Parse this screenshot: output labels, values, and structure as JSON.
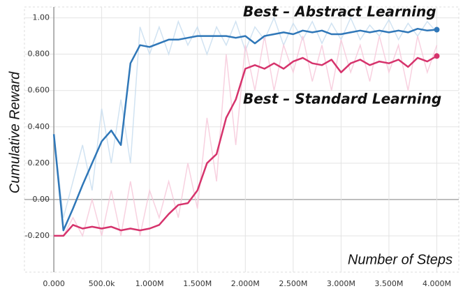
{
  "chart_data": {
    "type": "line",
    "y_label": "Cumulative Reward",
    "x_label": "Number of Steps",
    "xlim": [
      -307000,
      4230000
    ],
    "ylim": [
      -0.4,
      1.06
    ],
    "grid": true,
    "xticks": [
      {
        "value": 0,
        "label": "0.000"
      },
      {
        "value": 500000,
        "label": "500.0k"
      },
      {
        "value": 1000000,
        "label": "1.000M"
      },
      {
        "value": 1500000,
        "label": "1.500M"
      },
      {
        "value": 2000000,
        "label": "2.000M"
      },
      {
        "value": 2500000,
        "label": "2.500M"
      },
      {
        "value": 3000000,
        "label": "3.000M"
      },
      {
        "value": 3500000,
        "label": "3.500M"
      },
      {
        "value": 4000000,
        "label": "4.000M"
      }
    ],
    "yticks": [
      {
        "value": -0.2,
        "label": "-0.200"
      },
      {
        "value": 0,
        "label": "0.00"
      },
      {
        "value": 0.2,
        "label": "0.200"
      },
      {
        "value": 0.4,
        "label": "0.400"
      },
      {
        "value": 0.6,
        "label": "0.600"
      },
      {
        "value": 0.8,
        "label": "0.800"
      },
      {
        "value": 1,
        "label": "1.00"
      }
    ],
    "x": [
      0,
      100000,
      200000,
      300000,
      400000,
      500000,
      600000,
      700000,
      800000,
      900000,
      1000000,
      1100000,
      1200000,
      1300000,
      1400000,
      1500000,
      1600000,
      1700000,
      1800000,
      1900000,
      2000000,
      2100000,
      2200000,
      2300000,
      2400000,
      2500000,
      2600000,
      2700000,
      2800000,
      2900000,
      3000000,
      3100000,
      3200000,
      3300000,
      3400000,
      3500000,
      3600000,
      3700000,
      3800000,
      3900000,
      4000000
    ],
    "series": [
      {
        "name": "Best – Abstract Learning",
        "color": "#2f77b8",
        "raw_color": "#c6dcef",
        "values": [
          0.36,
          -0.17,
          -0.05,
          0.08,
          0.2,
          0.32,
          0.38,
          0.3,
          0.75,
          0.85,
          0.84,
          0.86,
          0.88,
          0.88,
          0.89,
          0.9,
          0.9,
          0.9,
          0.9,
          0.89,
          0.9,
          0.86,
          0.9,
          0.91,
          0.92,
          0.91,
          0.93,
          0.92,
          0.93,
          0.91,
          0.91,
          0.92,
          0.93,
          0.92,
          0.93,
          0.92,
          0.93,
          0.92,
          0.94,
          0.93,
          0.935
        ],
        "raw_values": [
          0.36,
          -0.1,
          0.1,
          0.3,
          0.05,
          0.5,
          0.2,
          0.55,
          0.2,
          0.95,
          0.8,
          0.95,
          0.8,
          0.98,
          0.85,
          0.95,
          0.8,
          0.95,
          0.85,
          0.98,
          0.82,
          0.95,
          0.88,
          1.0,
          0.85,
          0.97,
          0.88,
          0.98,
          0.86,
          0.97,
          0.88,
          1.0,
          0.88,
          0.96,
          0.9,
          0.99,
          0.88,
          0.97,
          0.9,
          0.98,
          0.92
        ]
      },
      {
        "name": "Best – Standard Learning",
        "color": "#d6336c",
        "raw_color": "#f6c6d8",
        "values": [
          -0.2,
          -0.2,
          -0.14,
          -0.16,
          -0.15,
          -0.16,
          -0.15,
          -0.17,
          -0.16,
          -0.17,
          -0.16,
          -0.14,
          -0.08,
          -0.03,
          -0.02,
          0.05,
          0.2,
          0.25,
          0.45,
          0.55,
          0.72,
          0.74,
          0.72,
          0.75,
          0.72,
          0.76,
          0.78,
          0.75,
          0.74,
          0.77,
          0.7,
          0.75,
          0.77,
          0.74,
          0.76,
          0.75,
          0.77,
          0.73,
          0.78,
          0.76,
          0.79
        ],
        "raw_values": [
          -0.2,
          -0.2,
          -0.1,
          -0.2,
          0.0,
          -0.2,
          0.05,
          -0.2,
          0.1,
          -0.2,
          0.05,
          -0.1,
          0.1,
          -0.1,
          0.2,
          -0.05,
          0.45,
          0.1,
          0.8,
          0.3,
          0.85,
          0.6,
          0.9,
          0.6,
          0.85,
          0.7,
          0.9,
          0.65,
          0.85,
          0.6,
          0.88,
          0.7,
          0.85,
          0.65,
          0.9,
          0.7,
          0.85,
          0.6,
          0.9,
          0.7,
          0.85
        ]
      }
    ]
  }
}
